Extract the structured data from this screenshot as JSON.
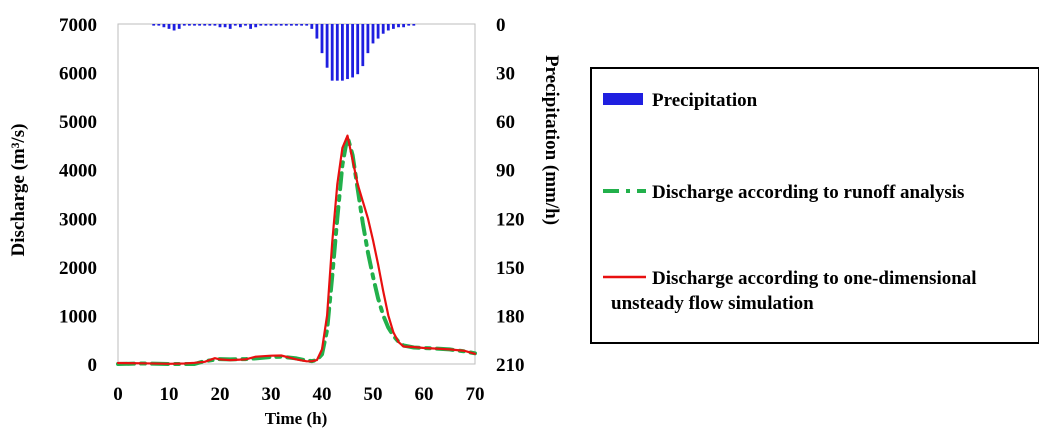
{
  "chart_data": {
    "type": "bar+line",
    "title": "",
    "xlabel": "Time (h)",
    "ylabel_left": "Discharge (m³/s)",
    "ylabel_right": "Precipitation (mm/h)",
    "xlim": [
      0,
      70
    ],
    "ylim_left": [
      0,
      7000
    ],
    "ylim_right_inverted": [
      0,
      210
    ],
    "x_ticks": [
      "0",
      "10",
      "20",
      "30",
      "40",
      "50",
      "60",
      "70"
    ],
    "y_left_ticks": [
      "0",
      "1000",
      "2000",
      "3000",
      "4000",
      "5000",
      "6000",
      "7000"
    ],
    "y_right_ticks": [
      "210",
      "180",
      "150",
      "120",
      "90",
      "60",
      "30",
      "0"
    ],
    "grid": false,
    "legend": {
      "placement": "right",
      "entries": [
        {
          "key": "precip",
          "label": "Precipitation",
          "color": "#1f1fe0",
          "style": "bar"
        },
        {
          "key": "runoff",
          "label": "Discharge according to runoff analysis",
          "color": "#22b04b",
          "style": "dashed"
        },
        {
          "key": "sim",
          "label": "Discharge according to one-dimensional unsteady flow simulation",
          "label_line1": "Discharge according to one-dimensional",
          "label_line2": "unsteady flow simulation",
          "color": "#e81010",
          "style": "solid"
        }
      ]
    },
    "series": [
      {
        "key": "precip",
        "x": [
          7,
          8,
          9,
          10,
          11,
          12,
          13,
          14,
          15,
          16,
          17,
          18,
          19,
          20,
          21,
          22,
          23,
          24,
          25,
          26,
          27,
          28,
          29,
          30,
          31,
          32,
          33,
          34,
          35,
          36,
          37,
          38,
          39,
          40,
          41,
          42,
          43,
          44,
          45,
          46,
          47,
          48,
          49,
          50,
          51,
          52,
          53,
          54,
          55,
          56,
          57,
          58
        ],
        "values": [
          1,
          1,
          2,
          3,
          4,
          3,
          1,
          1,
          1,
          1,
          1,
          1,
          1,
          2,
          2,
          3,
          1,
          2,
          1,
          3,
          2,
          1,
          1,
          1,
          1,
          1,
          1,
          1,
          1,
          1,
          1,
          3,
          9,
          18,
          27,
          35,
          35,
          35,
          34,
          33,
          31,
          26,
          18,
          12,
          9,
          6,
          4,
          3,
          2,
          2,
          1,
          1
        ]
      },
      {
        "key": "runoff",
        "x": [
          0,
          5,
          10,
          13,
          15,
          17,
          20,
          22,
          25,
          27,
          30,
          32,
          35,
          37,
          38,
          39,
          40,
          41,
          42,
          43,
          44,
          45,
          46,
          47,
          48,
          49,
          50,
          51,
          52,
          53,
          54,
          55,
          56,
          58,
          60,
          62,
          65,
          68,
          70
        ],
        "values": [
          0,
          10,
          0,
          0,
          0,
          60,
          100,
          95,
          100,
          115,
          145,
          150,
          115,
          70,
          60,
          80,
          200,
          700,
          1800,
          3000,
          4100,
          4680,
          4300,
          3600,
          2900,
          2300,
          1800,
          1350,
          1000,
          750,
          580,
          460,
          380,
          340,
          330,
          320,
          300,
          260,
          220
        ]
      },
      {
        "key": "sim",
        "x": [
          0,
          5,
          10,
          13,
          15,
          17,
          19,
          20,
          22,
          25,
          27,
          30,
          32,
          35,
          37,
          38,
          39,
          40,
          41,
          42,
          43,
          44,
          45,
          46,
          47,
          48,
          49,
          50,
          51,
          52,
          53,
          54,
          55,
          56,
          58,
          60,
          62,
          65,
          68,
          70
        ],
        "values": [
          20,
          15,
          5,
          10,
          25,
          45,
          120,
          95,
          80,
          95,
          150,
          170,
          175,
          95,
          55,
          55,
          80,
          300,
          1000,
          2500,
          3700,
          4450,
          4700,
          4200,
          3700,
          3350,
          3000,
          2550,
          2050,
          1500,
          1000,
          650,
          450,
          360,
          350,
          330,
          320,
          300,
          270,
          210
        ]
      }
    ]
  }
}
